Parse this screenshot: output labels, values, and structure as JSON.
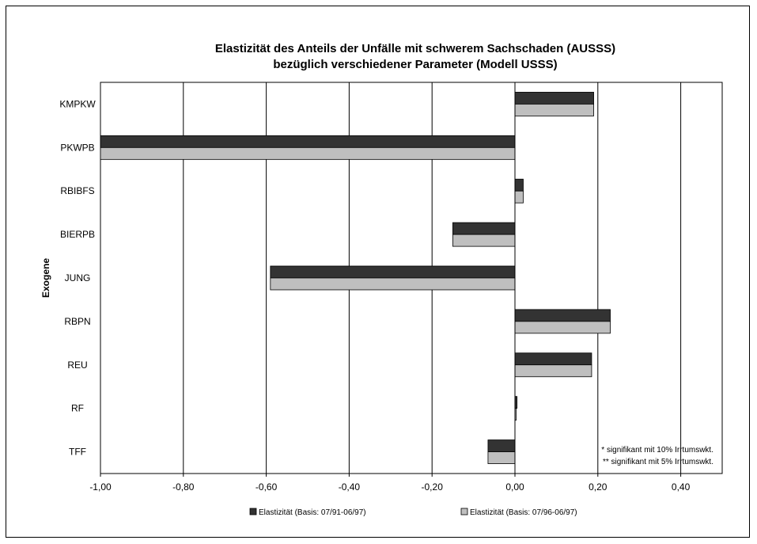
{
  "chart_data": {
    "type": "bar",
    "orientation": "horizontal",
    "title": [
      "Elastizität des Anteils der Unfälle mit schwerem Sachschaden (AUSSS)",
      "bezüglich verschiedener Parameter (Modell USSS)"
    ],
    "ylabel": "Exogene",
    "xlabel": "",
    "categories": [
      "KMPKW",
      "PKWPB",
      "RBIBFS",
      "BIERPB",
      "JUNG",
      "RBPN",
      "REU",
      "RF",
      "TFF"
    ],
    "series": [
      {
        "name": "Elastizität (Basis: 07/91-06/97)",
        "color": "#333333",
        "values": [
          0.19,
          -1.0,
          0.02,
          -0.15,
          -0.59,
          0.23,
          0.185,
          0.005,
          -0.065
        ]
      },
      {
        "name": "Elastizität (Basis: 07/96-06/97)",
        "color": "#bfbfbf",
        "values": [
          0.19,
          -1.0,
          0.02,
          -0.15,
          -0.59,
          0.23,
          0.185,
          0.003,
          -0.065
        ]
      }
    ],
    "xlim": [
      -1.0,
      0.5
    ],
    "xticks": [
      -1.0,
      -0.8,
      -0.6,
      -0.4,
      -0.2,
      0.0,
      0.2,
      0.4
    ],
    "xtick_labels": [
      "-1,00",
      "-0,80",
      "-0,60",
      "-0,40",
      "-0,20",
      "0,00",
      "0,20",
      "0,40"
    ],
    "grid": "vertical",
    "legend_position": "bottom",
    "notes": [
      "* signifikant mit 10% Irrtumswkt.",
      "** signifikant mit 5% Irrtumswkt."
    ]
  }
}
